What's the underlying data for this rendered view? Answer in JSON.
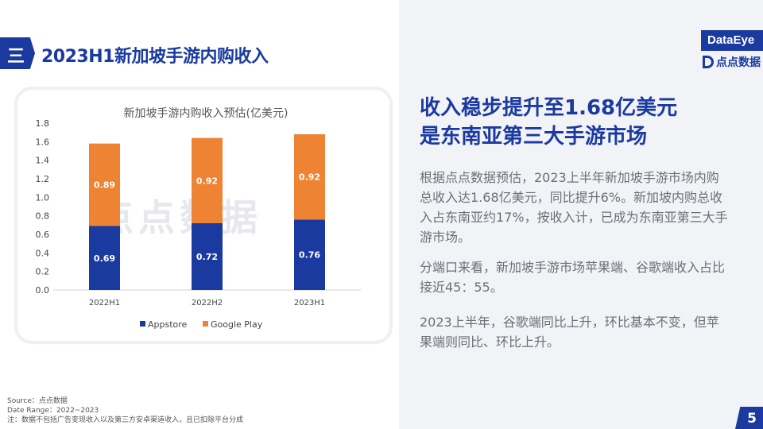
{
  "header": {
    "section_mark": "三",
    "title": "2023H1新加坡手游内购收入"
  },
  "logos": {
    "brand": "DataEye",
    "partner": "点点数据"
  },
  "headline": {
    "line1": "收入稳步提升至1.68亿美元",
    "line2": "是东南亚第三大手游市场"
  },
  "body": {
    "p1": "根据点点数据预估，2023上半年新加坡手游市场内购总收入达1.68亿美元，同比提升6%。新加坡内购总收入占东南亚约17%，按收入计，已成为东南亚第三大手游市场。",
    "p2": "分端口来看，新加坡手游市场苹果端、谷歌端收入占比接近45：55。",
    "p3": "2023上半年，谷歌端同比上升，环比基本不变，但苹果端则同比、环比上升。"
  },
  "footnotes": {
    "source": "Source：点点数据",
    "date_range": "Date Range：2022~2023",
    "note": "注：数据不包括广告变现收入以及第三方安卓渠道收入，且已扣除平台分成"
  },
  "page_number": "5",
  "chart_data": {
    "type": "bar",
    "stacked": true,
    "title": "新加坡手游内购收入预估(亿美元)",
    "watermark": "点点数据",
    "categories": [
      "2022H1",
      "2022H2",
      "2023H1"
    ],
    "series": [
      {
        "name": "Appstore",
        "values": [
          0.69,
          0.72,
          0.76
        ],
        "color": "#1a3aa0"
      },
      {
        "name": "Google Play",
        "values": [
          0.89,
          0.92,
          0.92
        ],
        "color": "#ee8433"
      }
    ],
    "ylim": [
      0,
      1.8
    ],
    "yticks": [
      "0.0",
      "0.2",
      "0.4",
      "0.6",
      "0.8",
      "1.0",
      "1.2",
      "1.4",
      "1.6",
      "1.8"
    ],
    "grid": false,
    "legend_position": "bottom"
  }
}
